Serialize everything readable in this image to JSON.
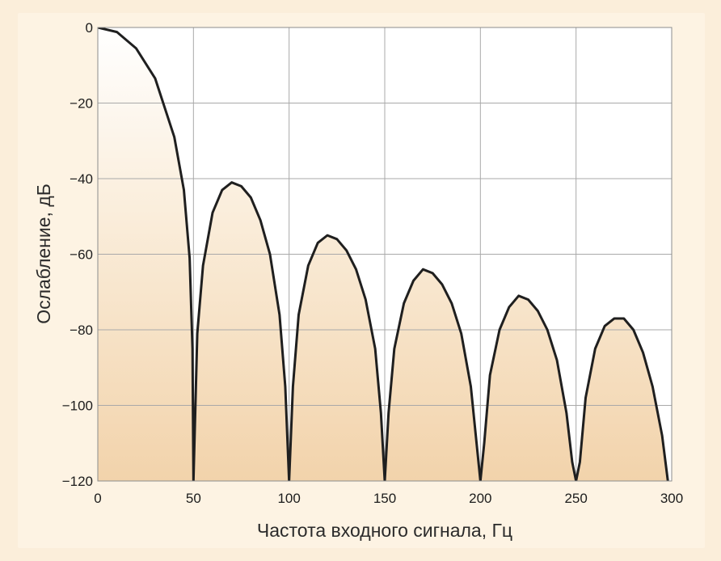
{
  "chart_data": {
    "type": "line",
    "title": "",
    "xlabel": "Частота входного сигнала, Гц",
    "ylabel": "Ослабление, дБ",
    "xlim": [
      0,
      300
    ],
    "ylim": [
      -120,
      0
    ],
    "x_ticks": [
      0,
      50,
      100,
      150,
      200,
      250,
      300
    ],
    "y_ticks": [
      0,
      -20,
      -40,
      -60,
      -80,
      -100,
      -120
    ],
    "x_tick_labels": [
      "0",
      "50",
      "100",
      "150",
      "200",
      "250",
      "300"
    ],
    "y_tick_labels": [
      "0",
      "−20",
      "−40",
      "−60",
      "−80",
      "−100",
      "−120"
    ],
    "grid": true,
    "series": [
      {
        "name": "",
        "description": "sinc-type filter response with nulls every 50 Hz",
        "x": [
          0,
          10,
          20,
          30,
          40,
          45,
          48,
          49.5,
          50,
          52,
          55,
          60,
          65,
          70,
          75,
          80,
          85,
          90,
          95,
          98,
          100,
          102,
          105,
          110,
          115,
          120,
          125,
          130,
          135,
          140,
          145,
          148,
          150,
          152,
          155,
          160,
          165,
          170,
          175,
          180,
          185,
          190,
          195,
          198,
          200,
          202,
          205,
          210,
          215,
          220,
          225,
          230,
          235,
          240,
          245,
          248,
          250,
          252,
          255,
          260,
          265,
          270,
          275,
          280,
          285,
          290,
          295,
          298
        ],
        "y": [
          0,
          -1.2,
          -5.5,
          -13.5,
          -29,
          -43,
          -61,
          -85,
          -120,
          -81,
          -63,
          -49,
          -43,
          -41,
          -42,
          -45,
          -51,
          -60,
          -76,
          -95,
          -120,
          -95,
          -76,
          -63,
          -57,
          -55,
          -56,
          -59,
          -64,
          -72,
          -85,
          -102,
          -120,
          -102,
          -85,
          -73,
          -67,
          -64,
          -65,
          -68,
          -73,
          -81,
          -95,
          -110,
          -120,
          -110,
          -92,
          -80,
          -74,
          -71,
          -72,
          -75,
          -80,
          -88,
          -102,
          -115,
          -120,
          -115,
          -98,
          -85,
          -79,
          -77,
          -77,
          -80,
          -86,
          -95,
          -108,
          -120
        ]
      }
    ]
  }
}
